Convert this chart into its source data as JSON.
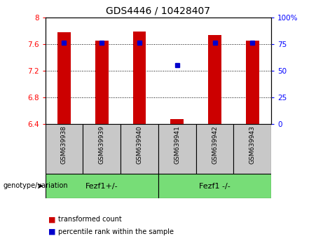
{
  "title": "GDS4446 / 10428407",
  "categories": [
    "GSM639938",
    "GSM639939",
    "GSM639940",
    "GSM639941",
    "GSM639942",
    "GSM639943"
  ],
  "bar_values": [
    7.78,
    7.65,
    7.79,
    6.47,
    7.73,
    7.65
  ],
  "percentile_values": [
    76,
    76,
    76,
    55,
    76,
    76
  ],
  "ylim": [
    6.4,
    8.0
  ],
  "y_ticks": [
    6.4,
    6.8,
    7.2,
    7.6,
    8.0
  ],
  "y_tick_labels": [
    "6.4",
    "6.8",
    "7.2",
    "7.6",
    "8"
  ],
  "y2_ticks": [
    0,
    25,
    50,
    75,
    100
  ],
  "y2_tick_labels": [
    "0",
    "25",
    "50",
    "75",
    "100%"
  ],
  "bar_color": "#cc0000",
  "dot_color": "#0000cc",
  "group1_label": "Fezf1+/-",
  "group2_label": "Fezf1 -/-",
  "group1_indices": [
    0,
    1,
    2
  ],
  "group2_indices": [
    3,
    4,
    5
  ],
  "group_bg_color": "#77dd77",
  "sample_bg_color": "#c8c8c8",
  "genotype_label": "genotype/variation",
  "legend_bar_label": "transformed count",
  "legend_dot_label": "percentile rank within the sample",
  "title_fontsize": 10,
  "tick_fontsize": 7.5,
  "label_fontsize": 7.5,
  "bar_width": 0.35,
  "base_value": 6.4
}
